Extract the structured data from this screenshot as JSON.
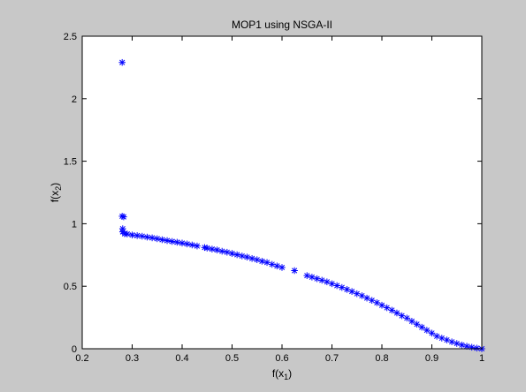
{
  "chart_data": {
    "type": "scatter",
    "title": "MOP1 using NSGA-II",
    "xlabel": {
      "base": "f(x",
      "sub": "1",
      "end": ")"
    },
    "ylabel": {
      "base": "f(x",
      "sub": "2",
      "end": ")"
    },
    "xlim": [
      0.2,
      1
    ],
    "ylim": [
      0,
      2.5
    ],
    "xticks": [
      "0.2",
      "0.3",
      "0.4",
      "0.5",
      "0.6",
      "0.7",
      "0.8",
      "0.9",
      "1"
    ],
    "yticks": [
      "0",
      "0.5",
      "1",
      "1.5",
      "2",
      "2.5"
    ],
    "grid": false,
    "marker": "*",
    "colors": {
      "marker": "#0000ff",
      "axes_bg": "#ffffff",
      "figure_bg": "#c8c8c8"
    },
    "series": [
      {
        "points": [
          [
            0.28,
            2.29
          ],
          [
            0.28,
            1.06
          ],
          [
            0.283,
            1.055
          ],
          [
            0.281,
            0.96
          ],
          [
            0.281,
            0.935
          ],
          [
            0.285,
            0.92
          ],
          [
            0.29,
            0.918
          ],
          [
            0.3,
            0.91
          ],
          [
            0.31,
            0.905
          ],
          [
            0.32,
            0.9
          ],
          [
            0.33,
            0.893
          ],
          [
            0.34,
            0.887
          ],
          [
            0.35,
            0.88
          ],
          [
            0.36,
            0.872
          ],
          [
            0.37,
            0.865
          ],
          [
            0.38,
            0.858
          ],
          [
            0.39,
            0.852
          ],
          [
            0.4,
            0.845
          ],
          [
            0.41,
            0.838
          ],
          [
            0.42,
            0.83
          ],
          [
            0.43,
            0.822
          ],
          [
            0.445,
            0.81
          ],
          [
            0.45,
            0.805
          ],
          [
            0.46,
            0.797
          ],
          [
            0.47,
            0.79
          ],
          [
            0.48,
            0.78
          ],
          [
            0.49,
            0.772
          ],
          [
            0.5,
            0.762
          ],
          [
            0.51,
            0.752
          ],
          [
            0.52,
            0.742
          ],
          [
            0.53,
            0.733
          ],
          [
            0.54,
            0.722
          ],
          [
            0.55,
            0.712
          ],
          [
            0.56,
            0.7
          ],
          [
            0.57,
            0.69
          ],
          [
            0.58,
            0.675
          ],
          [
            0.59,
            0.662
          ],
          [
            0.6,
            0.65
          ],
          [
            0.625,
            0.625
          ],
          [
            0.65,
            0.585
          ],
          [
            0.66,
            0.573
          ],
          [
            0.67,
            0.56
          ],
          [
            0.68,
            0.548
          ],
          [
            0.69,
            0.535
          ],
          [
            0.7,
            0.52
          ],
          [
            0.71,
            0.505
          ],
          [
            0.72,
            0.49
          ],
          [
            0.73,
            0.474
          ],
          [
            0.74,
            0.458
          ],
          [
            0.75,
            0.44
          ],
          [
            0.76,
            0.424
          ],
          [
            0.77,
            0.405
          ],
          [
            0.78,
            0.387
          ],
          [
            0.79,
            0.368
          ],
          [
            0.8,
            0.348
          ],
          [
            0.81,
            0.328
          ],
          [
            0.82,
            0.308
          ],
          [
            0.83,
            0.286
          ],
          [
            0.84,
            0.264
          ],
          [
            0.85,
            0.245
          ],
          [
            0.86,
            0.22
          ],
          [
            0.87,
            0.196
          ],
          [
            0.88,
            0.172
          ],
          [
            0.89,
            0.148
          ],
          [
            0.9,
            0.125
          ],
          [
            0.91,
            0.1
          ],
          [
            0.92,
            0.085
          ],
          [
            0.93,
            0.07
          ],
          [
            0.94,
            0.055
          ],
          [
            0.95,
            0.042
          ],
          [
            0.96,
            0.03
          ],
          [
            0.97,
            0.02
          ],
          [
            0.98,
            0.012
          ],
          [
            0.99,
            0.005
          ],
          [
            1.0,
            0.0
          ]
        ]
      }
    ]
  }
}
